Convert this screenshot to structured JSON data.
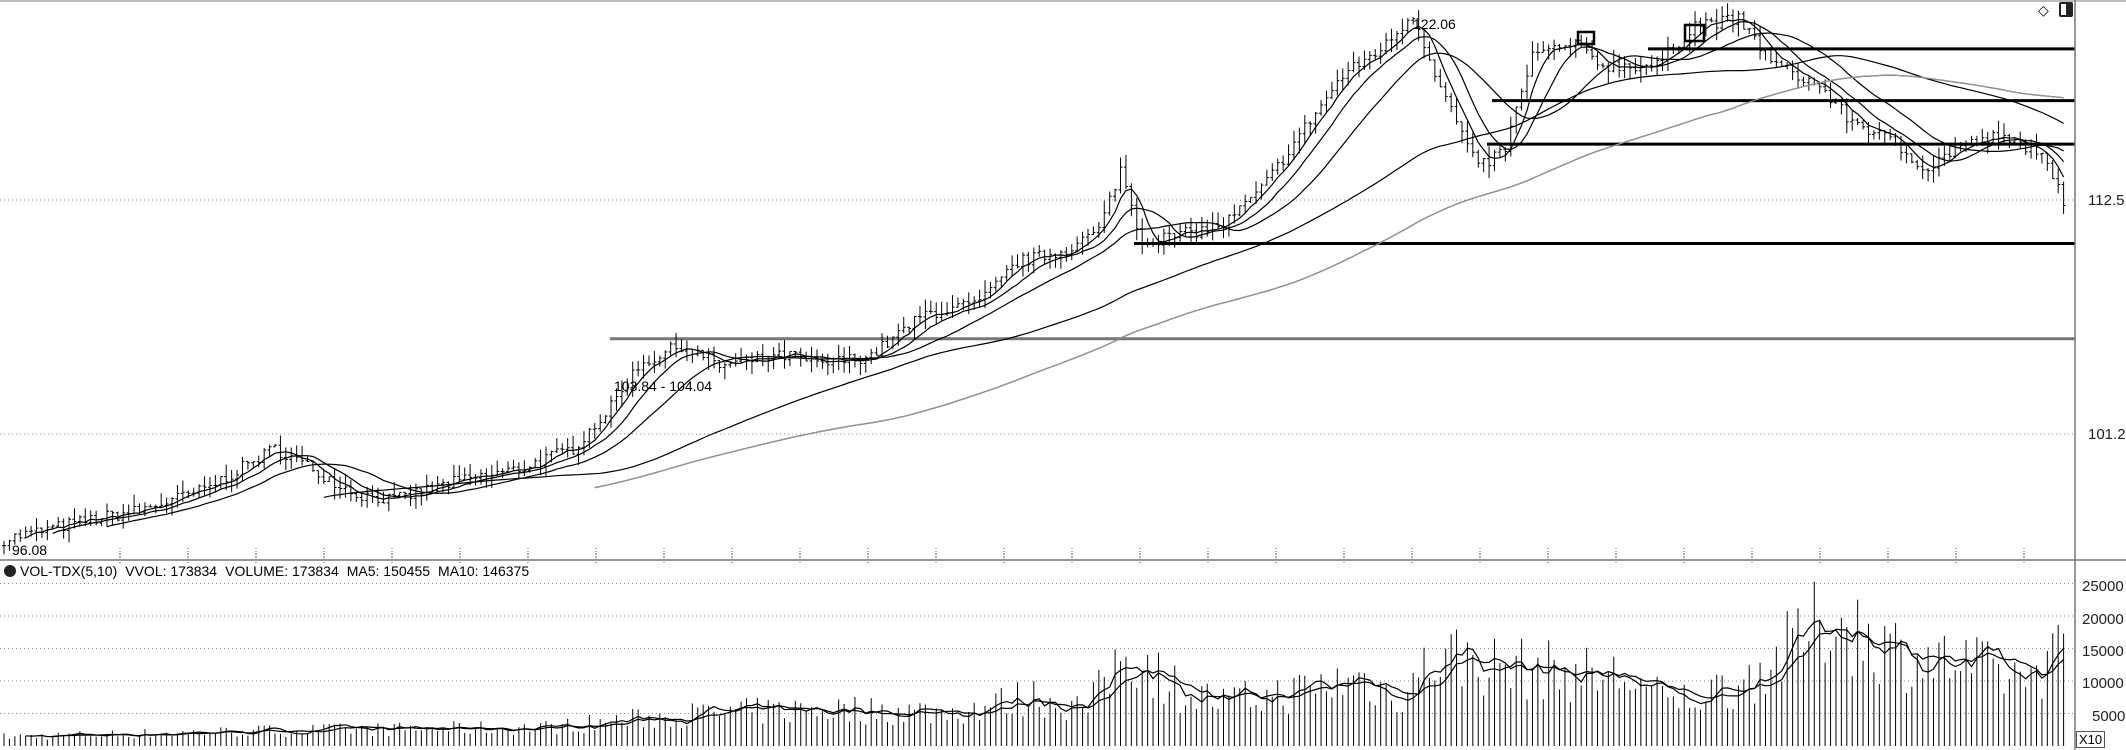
{
  "chart_data": {
    "type": "candlestick",
    "price_axis": {
      "ticks": [
        "112.5",
        "101.2"
      ]
    },
    "volume_axis": {
      "ticks": [
        "25000",
        "20000",
        "15000",
        "10000",
        "5000"
      ],
      "multiplier_label": "X10"
    },
    "annotations": {
      "high_label": "122.06",
      "low_label": "96.08",
      "zone_label": "103.84 - 104.04"
    },
    "horizontal_levels": [
      119.8,
      117.3,
      115.2,
      110.4,
      105.8
    ],
    "moving_averages": [
      5,
      10,
      20,
      60,
      120,
      250
    ],
    "price_waypoints": [
      [
        0,
        96.1
      ],
      [
        15,
        97.0
      ],
      [
        25,
        97.5
      ],
      [
        37,
        98.5
      ],
      [
        50,
        100.5
      ],
      [
        57,
        99.5
      ],
      [
        65,
        98.3
      ],
      [
        72,
        98.0
      ],
      [
        82,
        98.8
      ],
      [
        95,
        99.5
      ],
      [
        105,
        100.5
      ],
      [
        112,
        102.5
      ],
      [
        117,
        104.5
      ],
      [
        125,
        105.5
      ],
      [
        132,
        104.5
      ],
      [
        145,
        105.0
      ],
      [
        150,
        104.5
      ],
      [
        160,
        105.0
      ],
      [
        170,
        107.0
      ],
      [
        180,
        107.5
      ],
      [
        187,
        109.5
      ],
      [
        195,
        110.0
      ],
      [
        202,
        111.0
      ],
      [
        206,
        114.0
      ],
      [
        210,
        110.5
      ],
      [
        217,
        110.8
      ],
      [
        225,
        111.3
      ],
      [
        232,
        113.0
      ],
      [
        240,
        116.0
      ],
      [
        247,
        118.5
      ],
      [
        255,
        120.0
      ],
      [
        260,
        121.5
      ],
      [
        265,
        118.0
      ],
      [
        272,
        114.0
      ],
      [
        277,
        115.0
      ],
      [
        282,
        119.5
      ],
      [
        290,
        120.0
      ],
      [
        295,
        119.0
      ],
      [
        305,
        119.0
      ],
      [
        312,
        121.0
      ],
      [
        320,
        121.2
      ],
      [
        327,
        119.0
      ],
      [
        335,
        118.0
      ],
      [
        340,
        116.5
      ],
      [
        347,
        115.5
      ],
      [
        355,
        114.0
      ],
      [
        360,
        115.0
      ],
      [
        367,
        115.5
      ],
      [
        375,
        115.0
      ],
      [
        380,
        112.5
      ]
    ],
    "volume_waypoints": [
      [
        0,
        1500
      ],
      [
        50,
        2500
      ],
      [
        100,
        3000
      ],
      [
        125,
        5000
      ],
      [
        150,
        6000
      ],
      [
        175,
        5500
      ],
      [
        190,
        8000
      ],
      [
        200,
        6000
      ],
      [
        207,
        16000
      ],
      [
        217,
        9000
      ],
      [
        225,
        7000
      ],
      [
        240,
        9000
      ],
      [
        250,
        11000
      ],
      [
        257,
        8000
      ],
      [
        265,
        15000
      ],
      [
        275,
        13000
      ],
      [
        287,
        12000
      ],
      [
        300,
        11000
      ],
      [
        307,
        7000
      ],
      [
        320,
        10000
      ],
      [
        327,
        14000
      ],
      [
        337,
        21000
      ],
      [
        350,
        15000
      ],
      [
        362,
        13000
      ],
      [
        372,
        11000
      ],
      [
        380,
        15000
      ]
    ],
    "volume_header": {
      "indicator": "VOL-TDX(5,10)",
      "vvol": "VVOL: 173834",
      "volume": "VOLUME: 173834",
      "ma5": "MA5: 150455",
      "ma10": "MA10: 146375"
    }
  }
}
